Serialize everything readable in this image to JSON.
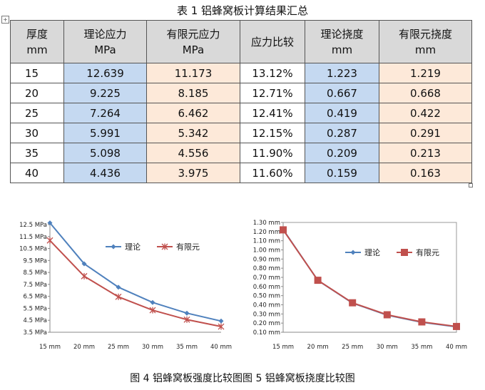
{
  "table": {
    "title": "表 1 铝蜂窝板计算结果汇总",
    "headers": [
      {
        "line1": "厚度",
        "line2": "mm"
      },
      {
        "line1": "理论应力",
        "line2": "MPa"
      },
      {
        "line1": "有限元应力",
        "line2": "MPa"
      },
      {
        "line1": "应力比较",
        "line2": ""
      },
      {
        "line1": "理论挠度",
        "line2": "mm"
      },
      {
        "line1": "有限元挠度",
        "line2": "mm"
      }
    ],
    "rows": [
      [
        "15",
        "12.639",
        "11.173",
        "13.12%",
        "1.223",
        "1.219"
      ],
      [
        "20",
        "9.225",
        "8.185",
        "12.71%",
        "0.667",
        "0.668"
      ],
      [
        "25",
        "7.264",
        "6.462",
        "12.41%",
        "0.419",
        "0.422"
      ],
      [
        "30",
        "5.991",
        "5.342",
        "12.15%",
        "0.287",
        "0.291"
      ],
      [
        "35",
        "5.098",
        "4.556",
        "11.90%",
        "0.209",
        "0.213"
      ],
      [
        "40",
        "4.436",
        "3.975",
        "11.60%",
        "0.159",
        "0.163"
      ]
    ],
    "colors": {
      "header": "#d9d9d9",
      "theory": "#c5d9f1",
      "fem": "#fde9d9"
    }
  },
  "chart_data": [
    {
      "type": "line",
      "title": "",
      "xlabel": "",
      "ylabel": "",
      "categories": [
        "15 mm",
        "20 mm",
        "25 mm",
        "30 mm",
        "35 mm",
        "40 mm"
      ],
      "y_ticks": [
        "12.5 MPa",
        "11.5 MPa",
        "10.5 MPa",
        "9.5 MPa",
        "8.5 MPa",
        "7.5 MPa",
        "6.5 MPa",
        "5.5 MPa",
        "4.5 MPa",
        "3.5 MPa"
      ],
      "ylim": [
        3.5,
        12.5
      ],
      "legend_position": "top-right",
      "series": [
        {
          "name": "理论",
          "values": [
            12.639,
            9.225,
            7.264,
            5.991,
            5.098,
            4.436
          ],
          "color": "#4f81bd",
          "marker": "diamond"
        },
        {
          "name": "有限元",
          "values": [
            11.173,
            8.185,
            6.462,
            5.342,
            4.556,
            3.975
          ],
          "color": "#c0504d",
          "marker": "x"
        }
      ]
    },
    {
      "type": "line",
      "title": "",
      "xlabel": "",
      "ylabel": "",
      "categories": [
        "15 mm",
        "20 mm",
        "25 mm",
        "30 mm",
        "35 mm",
        "40 mm"
      ],
      "y_ticks": [
        "1.30 mm",
        "1.20 mm",
        "1.10 mm",
        "1.00 mm",
        "0.90 mm",
        "0.80 mm",
        "0.70 mm",
        "0.60 mm",
        "0.50 mm",
        "0.40 mm",
        "0.30 mm",
        "0.20 mm",
        "0.10 mm"
      ],
      "ylim": [
        0.1,
        1.3
      ],
      "legend_position": "top-right",
      "series": [
        {
          "name": "理论",
          "values": [
            1.223,
            0.667,
            0.419,
            0.287,
            0.209,
            0.159
          ],
          "color": "#4f81bd",
          "marker": "diamond"
        },
        {
          "name": "有限元",
          "values": [
            1.219,
            0.668,
            0.422,
            0.291,
            0.213,
            0.163
          ],
          "color": "#c0504d",
          "marker": "square"
        }
      ]
    }
  ],
  "caption": "图 4 铝蜂窝板强度比较图图 5 铝蜂窝板挠度比较图"
}
